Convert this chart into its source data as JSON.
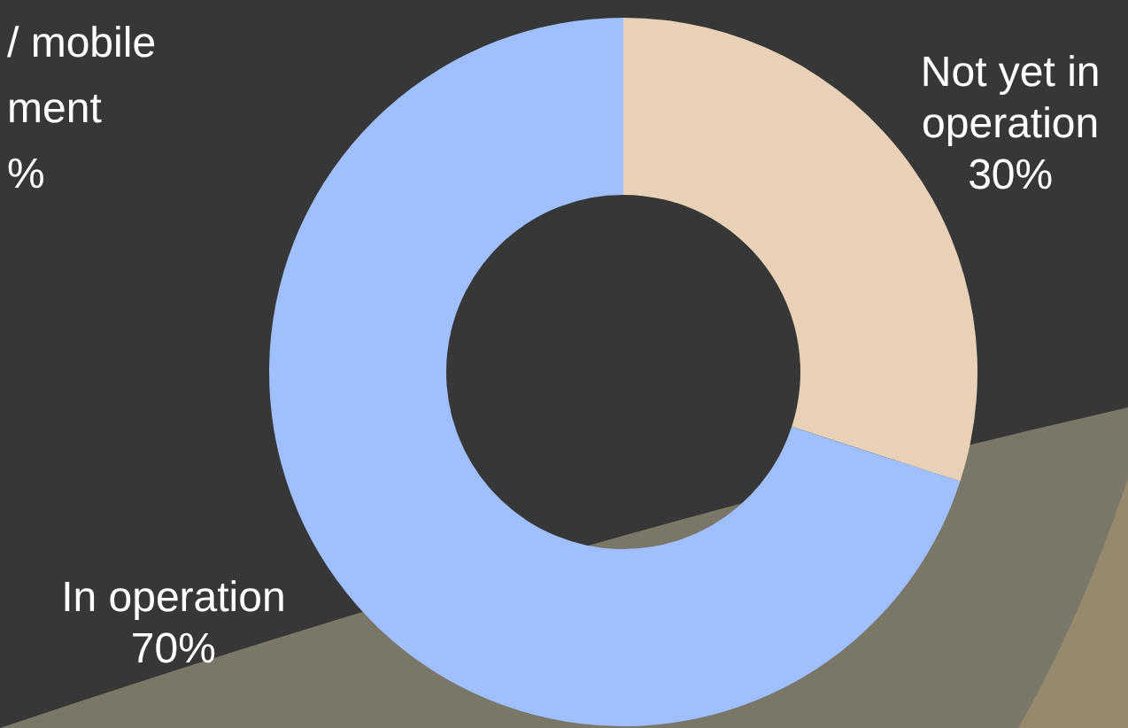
{
  "chart_data": {
    "type": "donut",
    "categories": [
      "Not yet in operation",
      "In operation"
    ],
    "values": [
      30,
      70
    ],
    "value_labels": [
      "30%",
      "70%"
    ],
    "colors": [
      "#e8d1b6",
      "#a0bffd"
    ],
    "annotations": [
      "/ mobile",
      "ment",
      "%"
    ]
  }
}
